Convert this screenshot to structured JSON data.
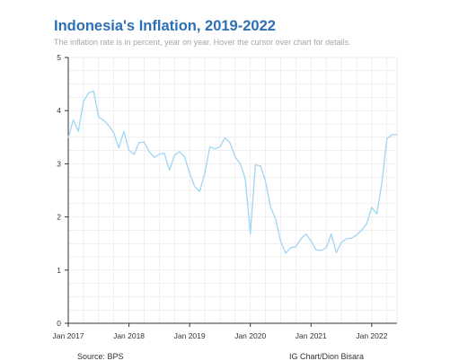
{
  "header": {
    "title": "Indonesia's Inflation, 2019-2022",
    "subtitle": "The inflation rate is in percent, year on year. Hover the cursor over chart for details."
  },
  "footer": {
    "source": "Source: BPS",
    "credit": "IG Chart/Dion Bisara"
  },
  "colors": {
    "title": "#2d6fb3",
    "line": "#9fd6f5",
    "grid": "#e6e6e6",
    "axis": "#333333"
  },
  "chart_data": {
    "type": "line",
    "title": "Indonesia's Inflation, 2019-2022",
    "subtitle": "The inflation rate is in percent, year on year. Hover the cursor over chart for details.",
    "ylim": [
      0,
      5
    ],
    "xlim": [
      "2017-01",
      "2022-06"
    ],
    "grid": true,
    "y_ticks": [
      "0",
      "1",
      "2",
      "3",
      "4",
      "5"
    ],
    "x_ticks": [
      {
        "label": "Jan 2017",
        "date": "2017-01"
      },
      {
        "label": "Jan 2018",
        "date": "2018-01"
      },
      {
        "label": "Jan 2019",
        "date": "2019-01"
      },
      {
        "label": "Jan 2020",
        "date": "2020-01"
      },
      {
        "label": "Jan 2021",
        "date": "2021-01"
      },
      {
        "label": "Jan 2022",
        "date": "2022-01"
      }
    ],
    "series": [
      {
        "x": [
          "2017-01",
          "2017-02",
          "2017-03",
          "2017-04",
          "2017-05",
          "2017-06",
          "2017-07",
          "2017-08",
          "2017-09",
          "2017-10",
          "2017-11",
          "2017-12",
          "2018-01",
          "2018-02",
          "2018-03",
          "2018-04",
          "2018-05",
          "2018-06",
          "2018-07",
          "2018-08",
          "2018-09",
          "2018-10",
          "2018-11",
          "2018-12",
          "2019-01",
          "2019-02",
          "2019-03",
          "2019-04",
          "2019-05",
          "2019-06",
          "2019-07",
          "2019-08",
          "2019-09",
          "2019-10",
          "2019-11",
          "2019-12",
          "2020-01",
          "2020-02",
          "2020-03",
          "2020-04",
          "2020-05",
          "2020-06",
          "2020-07",
          "2020-08",
          "2020-09",
          "2020-10",
          "2020-11",
          "2020-12",
          "2021-01",
          "2021-02",
          "2021-03",
          "2021-04",
          "2021-05",
          "2021-06",
          "2021-07",
          "2021-08",
          "2021-09",
          "2021-10",
          "2021-11",
          "2021-12",
          "2022-01",
          "2022-02",
          "2022-03",
          "2022-04",
          "2022-05",
          "2022-06"
        ],
        "values": [
          3.49,
          3.83,
          3.61,
          4.17,
          4.33,
          4.37,
          3.88,
          3.82,
          3.72,
          3.58,
          3.3,
          3.61,
          3.25,
          3.18,
          3.4,
          3.41,
          3.23,
          3.12,
          3.18,
          3.2,
          2.88,
          3.16,
          3.23,
          3.13,
          2.82,
          2.57,
          2.48,
          2.83,
          3.32,
          3.28,
          3.32,
          3.49,
          3.39,
          3.13,
          3.0,
          2.72,
          1.68,
          2.98,
          2.96,
          2.67,
          2.19,
          1.96,
          1.54,
          1.32,
          1.42,
          1.44,
          1.59,
          1.68,
          1.55,
          1.38,
          1.37,
          1.42,
          1.68,
          1.33,
          1.52,
          1.59,
          1.6,
          1.66,
          1.75,
          1.87,
          2.18,
          2.06,
          2.64,
          3.47,
          3.55,
          3.55
        ]
      }
    ]
  }
}
